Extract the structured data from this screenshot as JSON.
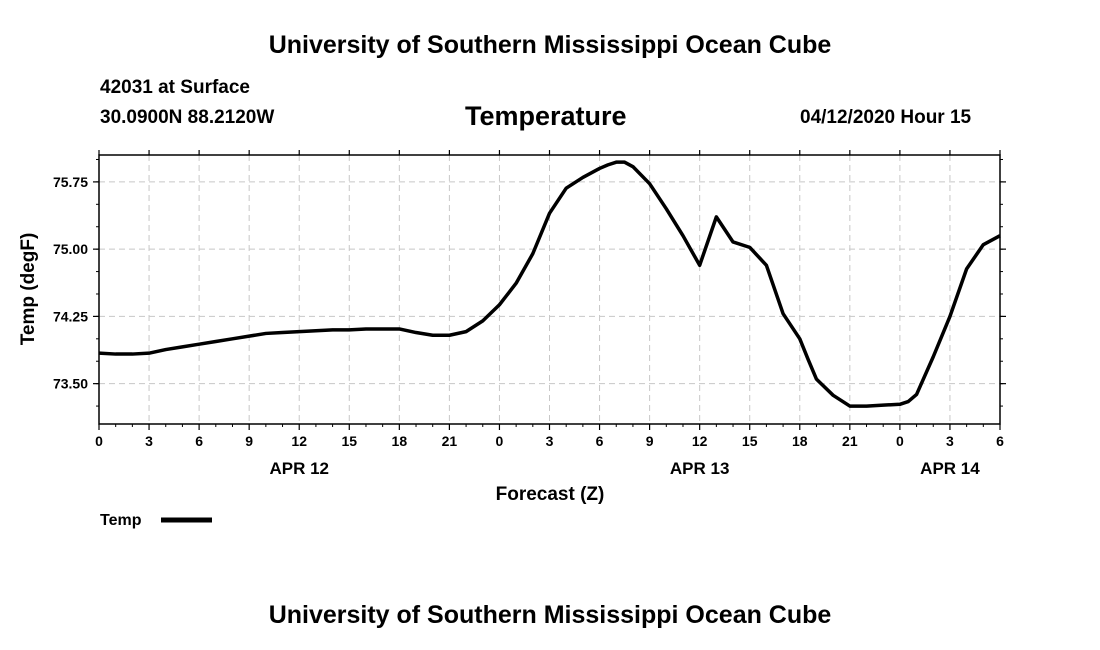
{
  "header": {
    "top_title": "University of Southern Mississippi Ocean Cube",
    "bottom_title": "University of Southern Mississippi Ocean Cube",
    "station": "42031 at Surface",
    "coords": "30.0900N 88.2120W",
    "datetime": "04/12/2020 Hour 15"
  },
  "colors": {
    "line": "#000000",
    "grid": "#c8c8c8"
  },
  "chart_data": {
    "type": "line",
    "title": "Temperature",
    "xlabel": "Forecast (Z)",
    "ylabel": "Temp (degF)",
    "x_unit": "forecast hour from APR 12 00Z",
    "xlim": [
      0,
      54
    ],
    "ylim": [
      73.05,
      76.05
    ],
    "yticks": [
      73.5,
      74.25,
      75.0,
      75.75
    ],
    "ytick_labels": [
      "73.50",
      "74.25",
      "75.00",
      "75.75"
    ],
    "xticks": [
      0,
      3,
      6,
      9,
      12,
      15,
      18,
      21,
      24,
      27,
      30,
      33,
      36,
      39,
      42,
      45,
      48,
      51,
      54
    ],
    "xtick_labels": [
      "0",
      "3",
      "6",
      "9",
      "12",
      "15",
      "18",
      "21",
      "0",
      "3",
      "6",
      "9",
      "12",
      "15",
      "18",
      "21",
      "0",
      "3",
      "6"
    ],
    "date_labels": [
      {
        "x": 12,
        "text": "APR 12"
      },
      {
        "x": 36,
        "text": "APR 13"
      },
      {
        "x": 51,
        "text": "APR 14"
      }
    ],
    "grid": true,
    "legend": "bottom-left",
    "series": [
      {
        "name": "Temp",
        "x": [
          0,
          1,
          2,
          3,
          4,
          5,
          6,
          7,
          8,
          9,
          10,
          11,
          12,
          13,
          14,
          15,
          16,
          17,
          18,
          19,
          20,
          21,
          22,
          23,
          24,
          25,
          26,
          27,
          28,
          29,
          30,
          30.5,
          31,
          31.5,
          32,
          33,
          34,
          35,
          36,
          37,
          38,
          39,
          40,
          41,
          42,
          42.5,
          43,
          44,
          45,
          46,
          47,
          48,
          48.5,
          49,
          50,
          51,
          52,
          53,
          54
        ],
        "values": [
          73.84,
          73.83,
          73.83,
          73.84,
          73.88,
          73.91,
          73.94,
          73.97,
          74.0,
          74.03,
          74.06,
          74.07,
          74.08,
          74.09,
          74.1,
          74.1,
          74.11,
          74.11,
          74.11,
          74.07,
          74.04,
          74.04,
          74.08,
          74.2,
          74.38,
          74.62,
          74.95,
          75.4,
          75.68,
          75.8,
          75.9,
          75.94,
          75.97,
          75.97,
          75.92,
          75.73,
          75.45,
          75.15,
          74.82,
          75.36,
          75.08,
          75.02,
          74.82,
          74.28,
          74.0,
          73.77,
          73.55,
          73.37,
          73.25,
          73.25,
          73.26,
          73.27,
          73.3,
          73.38,
          73.8,
          74.25,
          74.78,
          75.05,
          75.15
        ]
      }
    ]
  }
}
